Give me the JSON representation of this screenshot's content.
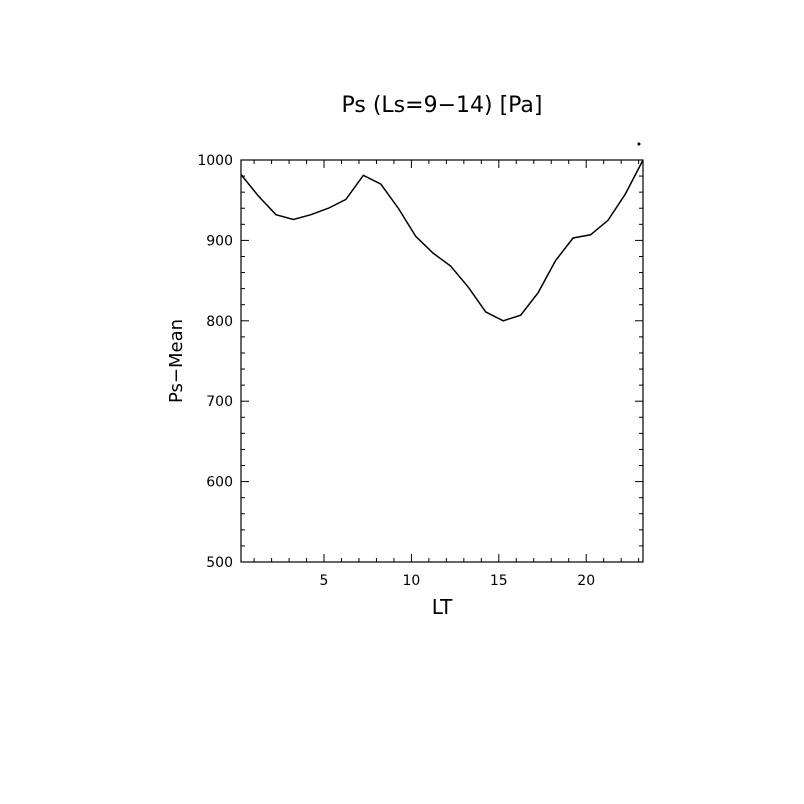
{
  "chart_data": {
    "type": "line",
    "title": "Ps (Ls=9−14) [Pa]",
    "xlabel": "LT",
    "ylabel": "Ps−Mean",
    "xlim": [
      0.25,
      23.25
    ],
    "ylim": [
      500,
      1000
    ],
    "xticks": [
      5,
      10,
      15,
      20
    ],
    "yticks": [
      500,
      600,
      700,
      800,
      900,
      1000
    ],
    "grid": false,
    "series": [
      {
        "x": [
          0.25,
          1.25,
          2.25,
          3.25,
          4.25,
          5.25,
          6.25,
          7.25,
          8.25,
          9.25,
          10.25,
          11.25,
          12.25,
          13.25,
          14.25,
          15.25,
          16.25,
          17.25,
          18.25,
          19.25,
          20.25,
          21.25,
          22.25,
          23.25
        ],
        "y": [
          982,
          955,
          932,
          926,
          932,
          940,
          951,
          981,
          970,
          940,
          905,
          884,
          868,
          842,
          811,
          800,
          807,
          835,
          875,
          903,
          907,
          925,
          958,
          1000
        ]
      }
    ],
    "colors": {
      "line": "#000000",
      "axis": "#000000"
    }
  }
}
